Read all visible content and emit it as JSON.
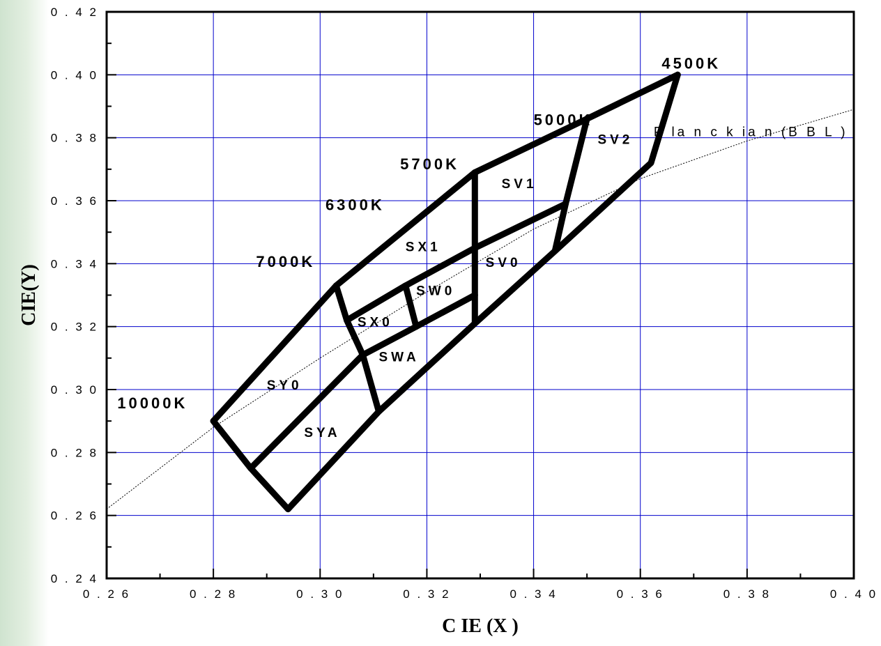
{
  "chart_data": {
    "type": "line",
    "title": "",
    "xlabel": "C IE (X )",
    "ylabel": "CIE(Y)",
    "xlim": [
      0.26,
      0.4
    ],
    "ylim": [
      0.24,
      0.42
    ],
    "xticks": [
      "0.26",
      "0.28",
      "0.30",
      "0.32",
      "0.34",
      "0.36",
      "0.38",
      "0.40"
    ],
    "yticks": [
      "0.24",
      "0.26",
      "0.28",
      "0.30",
      "0.32",
      "0.34",
      "0.36",
      "0.38",
      "0.40",
      "0.42"
    ],
    "grid": true,
    "grid_color": "#0000cc",
    "line_color": "#000000",
    "boundary_lines": [
      {
        "name": "outline-upper",
        "points": [
          [
            0.28,
            0.29
          ],
          [
            0.303,
            0.333
          ],
          [
            0.329,
            0.369
          ],
          [
            0.35,
            0.386
          ],
          [
            0.367,
            0.4
          ]
        ]
      },
      {
        "name": "outline-right",
        "points": [
          [
            0.367,
            0.4
          ],
          [
            0.362,
            0.372
          ],
          [
            0.344,
            0.344
          ],
          [
            0.329,
            0.321
          ],
          [
            0.311,
            0.293
          ],
          [
            0.294,
            0.262
          ]
        ]
      },
      {
        "name": "outline-left",
        "points": [
          [
            0.294,
            0.262
          ],
          [
            0.287,
            0.275
          ],
          [
            0.28,
            0.29
          ]
        ]
      },
      {
        "name": "divider-7000k",
        "points": [
          [
            0.303,
            0.333
          ],
          [
            0.305,
            0.322
          ],
          [
            0.308,
            0.311
          ],
          [
            0.311,
            0.293
          ]
        ]
      },
      {
        "name": "divider-5700k",
        "points": [
          [
            0.329,
            0.369
          ],
          [
            0.329,
            0.321
          ]
        ]
      },
      {
        "name": "divider-5000k",
        "points": [
          [
            0.35,
            0.386
          ],
          [
            0.346,
            0.359
          ],
          [
            0.344,
            0.344
          ]
        ]
      },
      {
        "name": "divider-lower",
        "points": [
          [
            0.287,
            0.275
          ],
          [
            0.308,
            0.311
          ],
          [
            0.318,
            0.32
          ],
          [
            0.329,
            0.33
          ]
        ]
      },
      {
        "name": "divider-middle",
        "points": [
          [
            0.305,
            0.322
          ],
          [
            0.316,
            0.333
          ],
          [
            0.329,
            0.345
          ],
          [
            0.346,
            0.359
          ]
        ]
      },
      {
        "name": "divider-sw0",
        "points": [
          [
            0.316,
            0.333
          ],
          [
            0.318,
            0.32
          ]
        ]
      }
    ],
    "planckian": {
      "label": "P la n c k ia n (B B L )",
      "points": [
        [
          0.26,
          0.262
        ],
        [
          0.28,
          0.288
        ],
        [
          0.3,
          0.31
        ],
        [
          0.32,
          0.331
        ],
        [
          0.34,
          0.351
        ],
        [
          0.36,
          0.367
        ],
        [
          0.38,
          0.379
        ],
        [
          0.4,
          0.389
        ]
      ]
    },
    "cct_labels": [
      {
        "text": "10000K",
        "x": 0.262,
        "y": 0.294
      },
      {
        "text": "7000K",
        "x": 0.288,
        "y": 0.339
      },
      {
        "text": "6300K",
        "x": 0.301,
        "y": 0.357
      },
      {
        "text": "5700K",
        "x": 0.315,
        "y": 0.37
      },
      {
        "text": "5000K",
        "x": 0.34,
        "y": 0.384
      },
      {
        "text": "4500K",
        "x": 0.364,
        "y": 0.402
      }
    ],
    "bin_labels": [
      {
        "text": "SV2",
        "x": 0.352,
        "y": 0.378
      },
      {
        "text": "SV1",
        "x": 0.334,
        "y": 0.364
      },
      {
        "text": "SX1",
        "x": 0.316,
        "y": 0.344
      },
      {
        "text": "SV0",
        "x": 0.331,
        "y": 0.339
      },
      {
        "text": "SW0",
        "x": 0.318,
        "y": 0.33
      },
      {
        "text": "SX0",
        "x": 0.307,
        "y": 0.32
      },
      {
        "text": "SWA",
        "x": 0.311,
        "y": 0.309
      },
      {
        "text": "SY0",
        "x": 0.29,
        "y": 0.3
      },
      {
        "text": "SYA",
        "x": 0.297,
        "y": 0.285
      }
    ]
  }
}
